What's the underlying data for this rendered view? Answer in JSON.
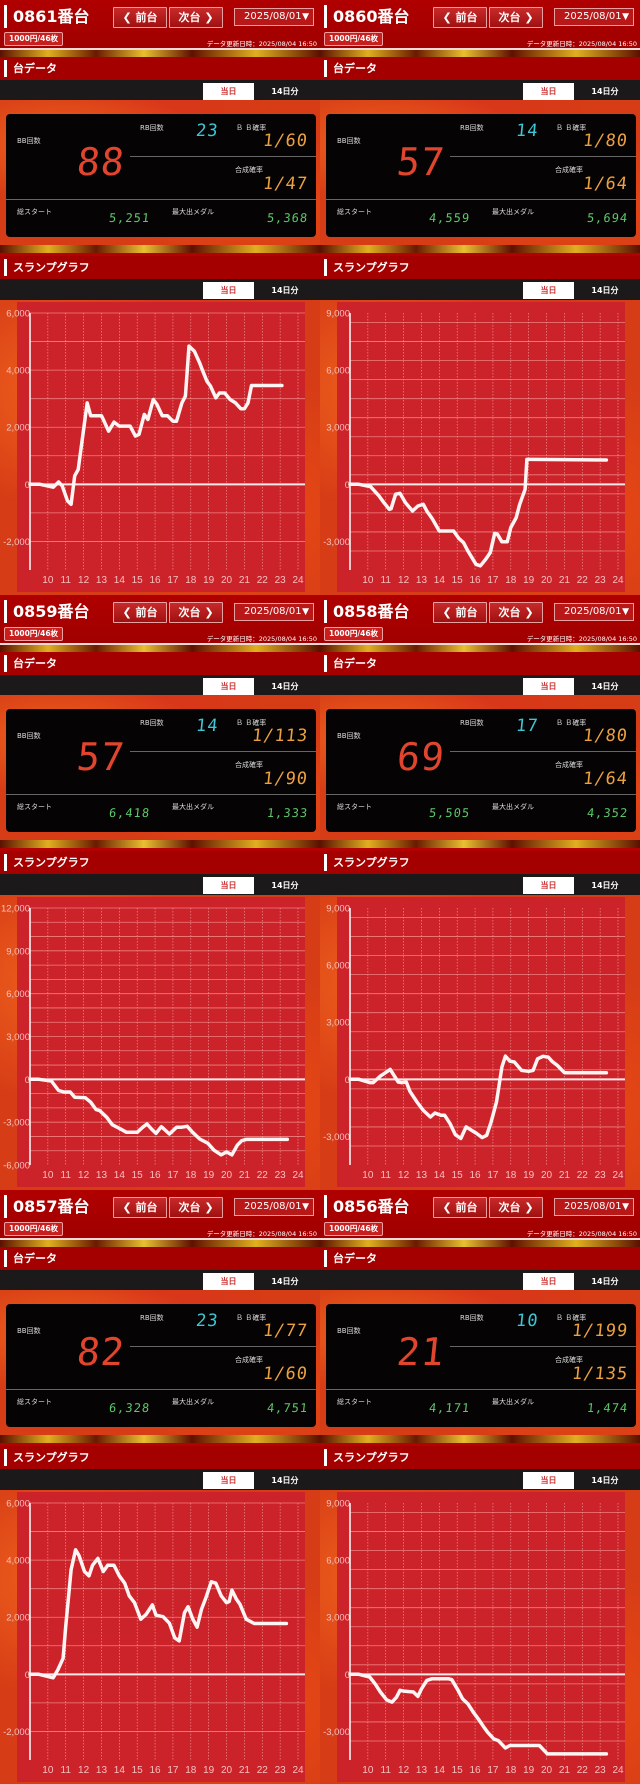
{
  "labels": {
    "prev": "前台",
    "next": "次台",
    "section_data": "台データ",
    "section_graph": "スランプグラフ",
    "tab_today": "当日",
    "tab_14days": "14日分",
    "bb": "BB回数",
    "rb": "RB回数",
    "bb_prob": "Ｂ Ｂ確率",
    "combined_prob": "合成確率",
    "total_start": "総スタート",
    "max_medal": "最大出メダル",
    "updated": "データ更新日時：2025/08/04 16:50",
    "rate": "1000円/46枚",
    "date": "2025/08/01"
  },
  "colors": {
    "header": "#a00000",
    "bb": "#e2452e",
    "rb": "#3dc6d4",
    "prob": "#eca040",
    "start": "#5cc86a",
    "chart_bg": "#cc2229",
    "line": "#fff4f4"
  },
  "icons": {
    "prev": "chevron-left-icon",
    "next": "chevron-right-icon",
    "select": "chevron-down-icon"
  },
  "machines": [
    {
      "name": "0861番台",
      "bb": "88",
      "rb": "23",
      "bb_prob": "1/60",
      "combined_prob": "1/47",
      "total_start": "5,251",
      "max_medal": "5,368"
    },
    {
      "name": "0860番台",
      "bb": "57",
      "rb": "14",
      "bb_prob": "1/80",
      "combined_prob": "1/64",
      "total_start": "4,559",
      "max_medal": "5,694"
    },
    {
      "name": "0859番台",
      "bb": "57",
      "rb": "14",
      "bb_prob": "1/113",
      "combined_prob": "1/90",
      "total_start": "6,418",
      "max_medal": "1,333"
    },
    {
      "name": "0858番台",
      "bb": "69",
      "rb": "17",
      "bb_prob": "1/80",
      "combined_prob": "1/64",
      "total_start": "5,505",
      "max_medal": "4,352"
    },
    {
      "name": "0857番台",
      "bb": "82",
      "rb": "23",
      "bb_prob": "1/77",
      "combined_prob": "1/60",
      "total_start": "6,328",
      "max_medal": "4,751"
    },
    {
      "name": "0856番台",
      "bb": "21",
      "rb": "10",
      "bb_prob": "1/199",
      "combined_prob": "1/135",
      "total_start": "4,171",
      "max_medal": "1,474"
    }
  ],
  "chart_data": [
    {
      "type": "line",
      "xlim": [
        9,
        24
      ],
      "xticks": [
        10,
        11,
        12,
        13,
        14,
        15,
        16,
        17,
        18,
        19,
        20,
        21,
        22,
        23,
        24
      ],
      "ylim": [
        -3000,
        6000
      ],
      "ygrid": 1000,
      "yticks": [
        6000,
        4000,
        2000,
        0,
        -2000
      ],
      "ytick_labels": [
        "6,000",
        "4,000",
        "2,000",
        "0",
        "-2,000"
      ],
      "points": [
        [
          9,
          0
        ],
        [
          9.56,
          0
        ],
        [
          10.3,
          -100
        ],
        [
          10.6,
          80
        ],
        [
          10.8,
          -50
        ],
        [
          11.1,
          -580
        ],
        [
          11.3,
          -700
        ],
        [
          11.5,
          300
        ],
        [
          11.7,
          520
        ],
        [
          12.2,
          2850
        ],
        [
          12.4,
          2400
        ],
        [
          13,
          2400
        ],
        [
          13.1,
          2270
        ],
        [
          13.4,
          1860
        ],
        [
          13.7,
          2180
        ],
        [
          14,
          2040
        ],
        [
          14.6,
          2040
        ],
        [
          14.9,
          1690
        ],
        [
          15.1,
          1750
        ],
        [
          15.4,
          2450
        ],
        [
          15.6,
          2270
        ],
        [
          15.9,
          2970
        ],
        [
          16.1,
          2800
        ],
        [
          16.4,
          2400
        ],
        [
          16.7,
          2400
        ],
        [
          17,
          2210
        ],
        [
          17.2,
          2210
        ],
        [
          17.5,
          2850
        ],
        [
          17.7,
          3090
        ],
        [
          17.9,
          4840
        ],
        [
          18.2,
          4660
        ],
        [
          18.5,
          4250
        ],
        [
          18.6,
          4080
        ],
        [
          18.9,
          3610
        ],
        [
          19.1,
          3440
        ],
        [
          19.4,
          3030
        ],
        [
          19.6,
          3200
        ],
        [
          19.9,
          3200
        ],
        [
          20.2,
          2970
        ],
        [
          20.5,
          2850
        ],
        [
          20.8,
          2650
        ],
        [
          21,
          2650
        ],
        [
          21.2,
          2850
        ],
        [
          21.4,
          3460
        ],
        [
          23.1,
          3460
        ]
      ]
    },
    {
      "type": "line",
      "xlim": [
        9,
        24
      ],
      "xticks": [
        10,
        11,
        12,
        13,
        14,
        15,
        16,
        17,
        18,
        19,
        20,
        21,
        22,
        23,
        24
      ],
      "ylim": [
        -4500,
        9000
      ],
      "ygrid": 1000,
      "yticks": [
        9000,
        6000,
        3000,
        0,
        -3000
      ],
      "ytick_labels": [
        "9,000",
        "6,000",
        "3,000",
        "0",
        "-3,000"
      ],
      "points": [
        [
          9,
          0
        ],
        [
          9.5,
          0
        ],
        [
          10.15,
          -120
        ],
        [
          10.6,
          -580
        ],
        [
          10.9,
          -960
        ],
        [
          11.2,
          -1310
        ],
        [
          11.3,
          -1280
        ],
        [
          11.55,
          -520
        ],
        [
          11.8,
          -470
        ],
        [
          12.1,
          -960
        ],
        [
          12.5,
          -1400
        ],
        [
          12.8,
          -1140
        ],
        [
          13.1,
          -1050
        ],
        [
          13.3,
          -1400
        ],
        [
          13.6,
          -1800
        ],
        [
          14,
          -2450
        ],
        [
          14.8,
          -2450
        ],
        [
          15.1,
          -2850
        ],
        [
          15.35,
          -3060
        ],
        [
          15.6,
          -3500
        ],
        [
          16.05,
          -4200
        ],
        [
          16.3,
          -4280
        ],
        [
          16.6,
          -3930
        ],
        [
          16.85,
          -3580
        ],
        [
          17.1,
          -2570
        ],
        [
          17.25,
          -2620
        ],
        [
          17.5,
          -3020
        ],
        [
          17.8,
          -3020
        ],
        [
          18,
          -2270
        ],
        [
          18.3,
          -1750
        ],
        [
          18.5,
          -1050
        ],
        [
          18.8,
          -260
        ],
        [
          18.9,
          1310
        ],
        [
          19.1,
          1310
        ],
        [
          23.35,
          1280
        ]
      ]
    },
    {
      "type": "line",
      "xlim": [
        9,
        24
      ],
      "xticks": [
        10,
        11,
        12,
        13,
        14,
        15,
        16,
        17,
        18,
        19,
        20,
        21,
        22,
        23,
        24
      ],
      "ylim": [
        -6000,
        12000
      ],
      "ygrid": 1000,
      "yticks": [
        12000,
        9000,
        6000,
        3000,
        0,
        -3000,
        -6000
      ],
      "ytick_labels": [
        "12,000",
        "9,000",
        "6,000",
        "3,000",
        "0",
        "-3,000",
        "-6,000"
      ],
      "points": [
        [
          9,
          0
        ],
        [
          9.5,
          0
        ],
        [
          10.2,
          -120
        ],
        [
          10.6,
          -780
        ],
        [
          10.9,
          -890
        ],
        [
          11.25,
          -890
        ],
        [
          11.5,
          -1250
        ],
        [
          12.1,
          -1290
        ],
        [
          12.4,
          -1600
        ],
        [
          12.7,
          -2120
        ],
        [
          12.9,
          -2190
        ],
        [
          13.3,
          -2660
        ],
        [
          13.6,
          -3180
        ],
        [
          14,
          -3430
        ],
        [
          14.4,
          -3710
        ],
        [
          15,
          -3710
        ],
        [
          15.3,
          -3360
        ],
        [
          15.55,
          -3130
        ],
        [
          15.8,
          -3480
        ],
        [
          16.05,
          -3790
        ],
        [
          16.35,
          -3320
        ],
        [
          16.5,
          -3480
        ],
        [
          16.8,
          -3830
        ],
        [
          17.2,
          -3360
        ],
        [
          17.45,
          -3360
        ],
        [
          17.8,
          -3290
        ],
        [
          18.1,
          -3710
        ],
        [
          18.5,
          -4180
        ],
        [
          18.95,
          -4470
        ],
        [
          19.3,
          -4960
        ],
        [
          19.7,
          -5290
        ],
        [
          20,
          -5080
        ],
        [
          20.3,
          -5290
        ],
        [
          20.6,
          -4610
        ],
        [
          20.85,
          -4300
        ],
        [
          21.1,
          -4210
        ],
        [
          23.4,
          -4210
        ]
      ]
    },
    {
      "type": "line",
      "xlim": [
        9,
        24
      ],
      "xticks": [
        10,
        11,
        12,
        13,
        14,
        15,
        16,
        17,
        18,
        19,
        20,
        21,
        22,
        23,
        24
      ],
      "ylim": [
        -4500,
        9000
      ],
      "ygrid": 1000,
      "yticks": [
        9000,
        6000,
        3000,
        0,
        -3000
      ],
      "ytick_labels": [
        "9,000",
        "6,000",
        "3,000",
        "0",
        "-3,000"
      ],
      "points": [
        [
          9,
          0
        ],
        [
          9.5,
          0
        ],
        [
          10.1,
          -170
        ],
        [
          10.3,
          -170
        ],
        [
          10.7,
          170
        ],
        [
          11.25,
          520
        ],
        [
          11.7,
          -140
        ],
        [
          11.9,
          -170
        ],
        [
          12.15,
          -140
        ],
        [
          12.35,
          -630
        ],
        [
          12.75,
          -1190
        ],
        [
          13.1,
          -1630
        ],
        [
          13.5,
          -1980
        ],
        [
          13.75,
          -1770
        ],
        [
          14.1,
          -1890
        ],
        [
          14.3,
          -1890
        ],
        [
          14.6,
          -2330
        ],
        [
          14.9,
          -2910
        ],
        [
          15.2,
          -3110
        ],
        [
          15.5,
          -2500
        ],
        [
          15.8,
          -2670
        ],
        [
          16.1,
          -2850
        ],
        [
          16.4,
          -3060
        ],
        [
          16.65,
          -2940
        ],
        [
          16.9,
          -2240
        ],
        [
          17.2,
          -1190
        ],
        [
          17.5,
          650
        ],
        [
          17.7,
          1220
        ],
        [
          17.95,
          950
        ],
        [
          18.2,
          910
        ],
        [
          18.6,
          470
        ],
        [
          19,
          420
        ],
        [
          19.25,
          470
        ],
        [
          19.5,
          1080
        ],
        [
          19.8,
          1210
        ],
        [
          20.1,
          1170
        ],
        [
          20.3,
          950
        ],
        [
          20.6,
          730
        ],
        [
          21,
          350
        ],
        [
          23.35,
          350
        ]
      ]
    },
    {
      "type": "line",
      "xlim": [
        9,
        24
      ],
      "xticks": [
        10,
        11,
        12,
        13,
        14,
        15,
        16,
        17,
        18,
        19,
        20,
        21,
        22,
        23,
        24
      ],
      "ylim": [
        -3000,
        6000
      ],
      "ygrid": 1000,
      "yticks": [
        6000,
        4000,
        2000,
        0,
        -2000
      ],
      "ytick_labels": [
        "6,000",
        "4,000",
        "2,000",
        "0",
        "-2,000"
      ],
      "points": [
        [
          9,
          0
        ],
        [
          9.5,
          0
        ],
        [
          10.3,
          -120
        ],
        [
          10.55,
          150
        ],
        [
          10.85,
          560
        ],
        [
          11,
          1670
        ],
        [
          11.3,
          3660
        ],
        [
          11.55,
          4360
        ],
        [
          11.75,
          4150
        ],
        [
          12.05,
          3600
        ],
        [
          12.3,
          3450
        ],
        [
          12.5,
          3820
        ],
        [
          12.8,
          4060
        ],
        [
          13.1,
          3600
        ],
        [
          13.35,
          3820
        ],
        [
          13.7,
          3820
        ],
        [
          14,
          3450
        ],
        [
          14.3,
          3190
        ],
        [
          14.55,
          2750
        ],
        [
          14.85,
          2510
        ],
        [
          15.2,
          1930
        ],
        [
          15.5,
          2100
        ],
        [
          15.85,
          2430
        ],
        [
          16.05,
          2070
        ],
        [
          16.45,
          2020
        ],
        [
          16.8,
          1790
        ],
        [
          17.1,
          1280
        ],
        [
          17.35,
          1170
        ],
        [
          17.65,
          2160
        ],
        [
          17.85,
          2370
        ],
        [
          18.1,
          1950
        ],
        [
          18.35,
          1650
        ],
        [
          18.6,
          2280
        ],
        [
          18.85,
          2690
        ],
        [
          19.15,
          3240
        ],
        [
          19.4,
          3190
        ],
        [
          19.7,
          2750
        ],
        [
          20,
          2510
        ],
        [
          20.15,
          2550
        ],
        [
          20.3,
          2950
        ],
        [
          20.55,
          2630
        ],
        [
          20.75,
          2460
        ],
        [
          21.1,
          1930
        ],
        [
          21.55,
          1780
        ],
        [
          23.35,
          1780
        ]
      ]
    },
    {
      "type": "line",
      "xlim": [
        9,
        24
      ],
      "xticks": [
        10,
        11,
        12,
        13,
        14,
        15,
        16,
        17,
        18,
        19,
        20,
        21,
        22,
        23,
        24
      ],
      "ylim": [
        -4500,
        9000
      ],
      "ygrid": 1000,
      "yticks": [
        9000,
        6000,
        3000,
        0,
        -3000
      ],
      "ytick_labels": [
        "9,000",
        "6,000",
        "3,000",
        "0",
        "-3,000"
      ],
      "points": [
        [
          9,
          0
        ],
        [
          9.5,
          0
        ],
        [
          10.1,
          -140
        ],
        [
          10.4,
          -490
        ],
        [
          10.7,
          -930
        ],
        [
          11.05,
          -1340
        ],
        [
          11.35,
          -1460
        ],
        [
          11.6,
          -1200
        ],
        [
          11.8,
          -840
        ],
        [
          12,
          -880
        ],
        [
          12.55,
          -930
        ],
        [
          12.8,
          -1160
        ],
        [
          13,
          -760
        ],
        [
          13.3,
          -320
        ],
        [
          13.6,
          -230
        ],
        [
          14.5,
          -230
        ],
        [
          14.7,
          -280
        ],
        [
          15.05,
          -840
        ],
        [
          15.3,
          -1290
        ],
        [
          15.6,
          -1550
        ],
        [
          15.9,
          -1990
        ],
        [
          16.25,
          -2430
        ],
        [
          16.5,
          -2780
        ],
        [
          16.7,
          -3040
        ],
        [
          17.05,
          -3390
        ],
        [
          17.3,
          -3480
        ],
        [
          17.7,
          -3870
        ],
        [
          17.95,
          -3740
        ],
        [
          18.2,
          -3740
        ],
        [
          19.6,
          -3740
        ],
        [
          20.05,
          -4180
        ],
        [
          23.35,
          -4180
        ]
      ]
    }
  ]
}
